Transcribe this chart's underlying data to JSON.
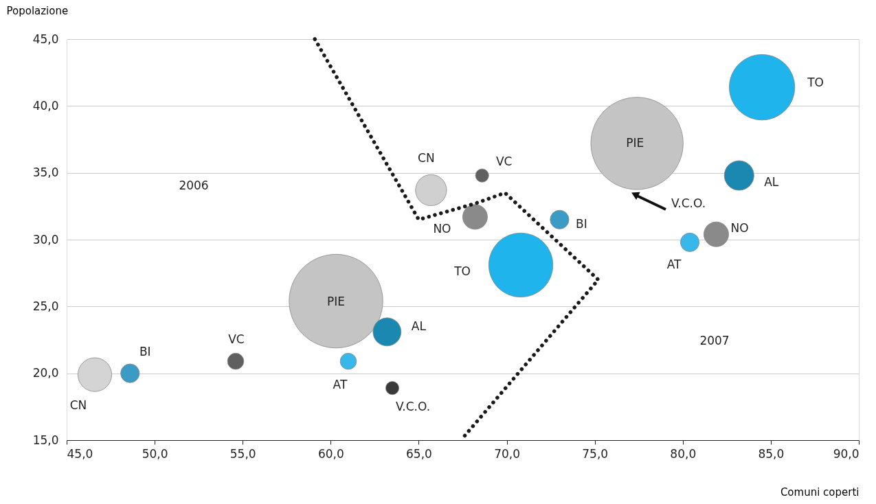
{
  "chart_data": {
    "type": "bubble",
    "xlabel": "Comuni coperti",
    "ylabel": "Popolazione",
    "xlim": [
      45,
      90
    ],
    "ylim": [
      15,
      45
    ],
    "xticks": [
      {
        "value": 45,
        "label": "45,0"
      },
      {
        "value": 50,
        "label": "50,0"
      },
      {
        "value": 55,
        "label": "55,0"
      },
      {
        "value": 60,
        "label": "60,0"
      },
      {
        "value": 65,
        "label": "65,0"
      },
      {
        "value": 70,
        "label": "70,0"
      },
      {
        "value": 75,
        "label": "75,0"
      },
      {
        "value": 80,
        "label": "80,0"
      },
      {
        "value": 85,
        "label": "85,0"
      },
      {
        "value": 90,
        "label": "90,0"
      }
    ],
    "yticks": [
      {
        "value": 15,
        "label": "15,0"
      },
      {
        "value": 20,
        "label": "20,0"
      },
      {
        "value": 25,
        "label": "25,0"
      },
      {
        "value": 30,
        "label": "30,0"
      },
      {
        "value": 35,
        "label": "35,0"
      },
      {
        "value": 40,
        "label": "40,0"
      },
      {
        "value": 45,
        "label": "45,0"
      }
    ],
    "grid": "y",
    "series": [
      {
        "x": [
          46.6,
          48.6,
          54.6,
          60.3,
          63.2,
          61.0,
          63.5,
          65.7,
          68.6,
          68.2,
          70.8,
          73.0,
          77.4,
          84.5,
          83.2,
          81.9,
          80.4
        ],
        "values": [
          19.9,
          20.0,
          20.9,
          25.4,
          23.1,
          20.9,
          18.9,
          33.7,
          34.8,
          31.7,
          28.1,
          31.5,
          37.2,
          41.4,
          34.8,
          30.4,
          29.8
        ],
        "sizes": [
          0.13,
          0.04,
          0.03,
          1.0,
          0.09,
          0.03,
          0.02,
          0.11,
          0.02,
          0.07,
          0.47,
          0.04,
          0.97,
          0.49,
          0.1,
          0.07,
          0.04
        ],
        "value_labels": [
          "CN",
          "BI",
          "VC",
          "PIE",
          "AL",
          "AT",
          "V.C.O.",
          "CN",
          "VC",
          "NO",
          "TO",
          "BI",
          "PIE",
          "TO",
          "AL",
          "NO",
          "AT"
        ],
        "colors": [
          "#d4d4d4",
          "#3a9cc4",
          "#606060",
          "#c4c4c4",
          "#1a88b0",
          "#38b8ea",
          "#3a3a3a",
          "#d0d0d0",
          "#606060",
          "#8a8a8a",
          "#1fb4ec",
          "#3a9cc4",
          "#c4c4c4",
          "#1fb4ec",
          "#1a88b0",
          "#8a8a8a",
          "#38b8ea"
        ]
      },
      {
        "type": "line",
        "line_style": "dotted",
        "color": "#1a1a1a",
        "x": [
          59.1,
          65.0,
          68.2,
          69.9,
          75.2,
          67.4
        ],
        "values": [
          45.0,
          31.5,
          32.7,
          33.5,
          27.0,
          15.0
        ]
      }
    ],
    "annotations": [
      "2006",
      "2007",
      "V.C.O."
    ]
  }
}
